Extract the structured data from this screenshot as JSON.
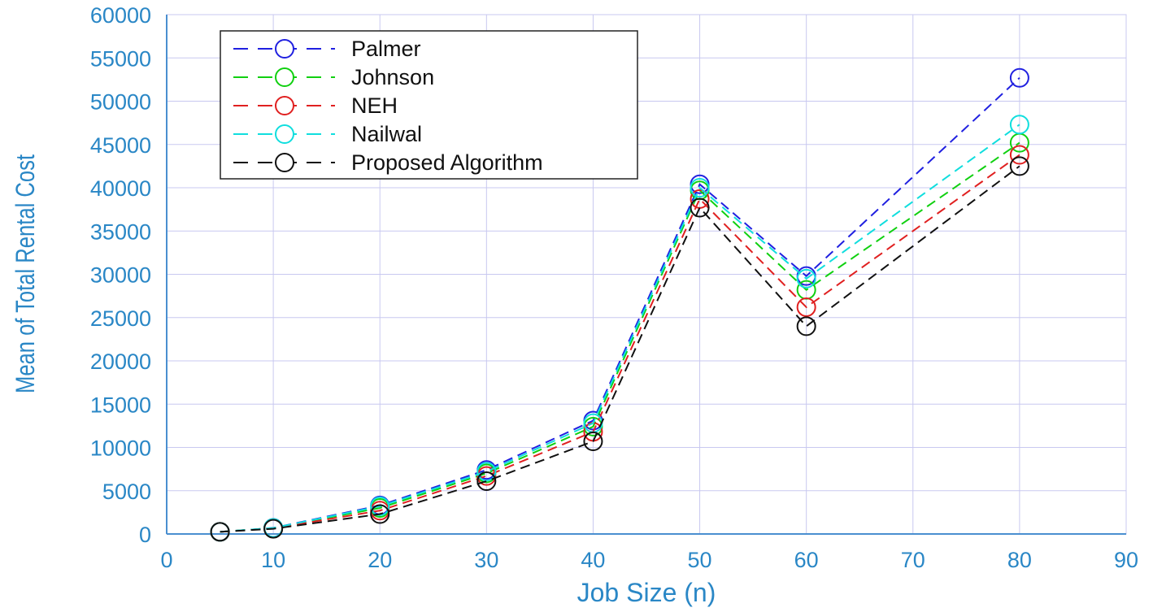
{
  "chart_data": {
    "type": "line",
    "xlabel": "Job Size (n)",
    "ylabel": "Mean of Total Rental Cost",
    "xlim": [
      0,
      90
    ],
    "ylim": [
      0,
      60000
    ],
    "xticks": [
      "0",
      "10",
      "20",
      "30",
      "40",
      "50",
      "60",
      "70",
      "80",
      "90"
    ],
    "yticks": [
      "0",
      "5000",
      "10000",
      "15000",
      "20000",
      "25000",
      "30000",
      "35000",
      "40000",
      "45000",
      "50000",
      "55000",
      "60000"
    ],
    "grid": true,
    "legend_position": "top-left",
    "line_style": "dashed",
    "marker": "open-circle",
    "x": [
      5,
      10,
      20,
      30,
      40,
      50,
      60,
      80
    ],
    "series": [
      {
        "name": "Palmer",
        "color": "#2020e0",
        "values": [
          250,
          700,
          3300,
          7400,
          13100,
          40400,
          29800,
          52700
        ]
      },
      {
        "name": "Johnson",
        "color": "#10d010",
        "values": [
          250,
          680,
          3000,
          7000,
          12400,
          39700,
          28200,
          45200
        ]
      },
      {
        "name": "NEH",
        "color": "#e02020",
        "values": [
          250,
          650,
          2700,
          6700,
          11800,
          38700,
          26200,
          43800
        ]
      },
      {
        "name": "Nailwal",
        "color": "#10dede",
        "values": [
          250,
          690,
          3200,
          7200,
          12800,
          40000,
          29500,
          47300
        ]
      },
      {
        "name": "Proposed Algorithm",
        "color": "#111111",
        "values": [
          250,
          600,
          2300,
          6100,
          10700,
          37700,
          24000,
          42500
        ]
      }
    ]
  }
}
